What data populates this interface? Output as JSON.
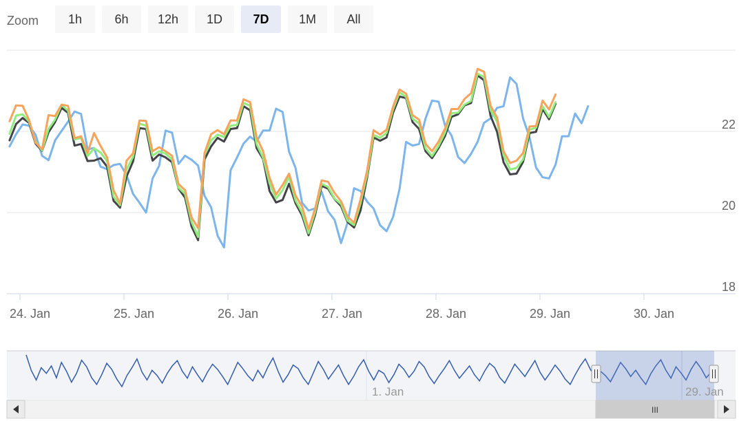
{
  "zoom": {
    "label": "Zoom",
    "buttons": [
      {
        "label": "1h",
        "selected": false
      },
      {
        "label": "6h",
        "selected": false
      },
      {
        "label": "12h",
        "selected": false
      },
      {
        "label": "1D",
        "selected": false
      },
      {
        "label": "7D",
        "selected": true
      },
      {
        "label": "1M",
        "selected": false
      },
      {
        "label": "All",
        "selected": false
      }
    ]
  },
  "chart_data": {
    "type": "line",
    "title": "",
    "xlabel": "",
    "ylabel": "",
    "x_tick_labels": [
      "24. Jan",
      "25. Jan",
      "26. Jan",
      "27. Jan",
      "28. Jan",
      "29. Jan",
      "30. Jan"
    ],
    "y_tick_labels": [
      "18",
      "20",
      "22"
    ],
    "ylim": [
      18,
      24
    ],
    "grid": true,
    "legend": "none",
    "x_start_days": 23.9,
    "x_step_days": 0.0625,
    "series_colors": {
      "blue": "#7cb5ec",
      "black": "#434348",
      "green": "#90ed7d",
      "orange": "#f7a35c"
    },
    "blue": [
      21.63,
      21.93,
      22.17,
      22.14,
      21.92,
      21.4,
      21.29,
      21.78,
      22.01,
      22.24,
      22.49,
      22.43,
      21.56,
      21.59,
      21.13,
      21.07,
      21.17,
      21.2,
      20.92,
      20.46,
      20.24,
      20.0,
      20.84,
      21.15,
      22.02,
      21.97,
      21.2,
      21.4,
      21.3,
      21.16,
      20.41,
      20.13,
      19.43,
      19.14,
      21.04,
      21.36,
      21.7,
      21.87,
      21.75,
      22.02,
      22.02,
      22.56,
      22.48,
      21.5,
      21.1,
      20.24,
      20.05,
      20.1,
      20.52,
      20.03,
      19.82,
      19.25,
      19.75,
      20.6,
      20.53,
      20.27,
      20.1,
      19.69,
      19.54,
      19.89,
      20.58,
      21.74,
      21.65,
      21.69,
      22.32,
      22.76,
      22.73,
      22.14,
      21.9,
      21.37,
      21.22,
      21.45,
      21.74,
      22.21,
      22.32,
      22.58,
      22.62,
      23.33,
      23.17,
      22.32,
      21.85,
      21.11,
      20.87,
      20.84,
      21.18,
      21.88,
      21.88,
      22.44,
      22.2,
      22.62
    ],
    "black": [
      21.78,
      22.18,
      22.33,
      22.21,
      21.7,
      21.52,
      21.98,
      22.23,
      22.58,
      22.46,
      21.65,
      21.69,
      21.27,
      21.28,
      21.34,
      21.13,
      20.29,
      20.12,
      20.89,
      21.26,
      22.08,
      22.06,
      21.28,
      21.43,
      21.36,
      21.24,
      20.59,
      20.37,
      19.66,
      19.32,
      21.31,
      21.63,
      21.84,
      21.75,
      22.06,
      22.08,
      22.62,
      22.52,
      21.59,
      21.32,
      20.53,
      20.25,
      20.31,
      20.71,
      20.23,
      19.93,
      19.44,
      19.94,
      20.66,
      20.59,
      20.33,
      20.16,
      19.77,
      19.63,
      20.05,
      20.86,
      21.85,
      21.77,
      21.85,
      22.46,
      22.86,
      22.82,
      22.23,
      22.06,
      21.51,
      21.34,
      21.59,
      21.89,
      22.36,
      22.42,
      22.64,
      22.7,
      23.38,
      23.26,
      22.38,
      21.99,
      21.24,
      20.94,
      20.96,
      21.25,
      21.96,
      21.99,
      22.55,
      22.3,
      22.68
    ],
    "green": [
      21.94,
      22.39,
      22.42,
      22.24,
      21.75,
      21.53,
      22.06,
      22.29,
      22.65,
      22.51,
      21.8,
      21.84,
      21.39,
      21.58,
      21.48,
      21.27,
      20.39,
      20.18,
      21.07,
      21.37,
      22.19,
      22.14,
      21.4,
      21.51,
      21.45,
      21.31,
      20.61,
      20.46,
      19.77,
      19.4,
      21.42,
      21.78,
      21.92,
      21.86,
      22.14,
      22.16,
      22.7,
      22.63,
      21.69,
      21.35,
      20.72,
      20.34,
      20.55,
      20.88,
      20.3,
      20.0,
      19.49,
      20.01,
      20.71,
      20.63,
      20.34,
      20.21,
      19.8,
      19.69,
      20.23,
      20.93,
      21.91,
      21.84,
      21.96,
      22.54,
      22.96,
      22.85,
      22.31,
      22.2,
      21.58,
      21.39,
      21.64,
      21.97,
      22.45,
      22.46,
      22.66,
      22.75,
      23.42,
      23.34,
      22.52,
      22.24,
      21.41,
      21.06,
      21.1,
      21.31,
      22.04,
      22.09,
      22.62,
      22.35,
      22.72
    ],
    "orange": [
      22.25,
      22.64,
      22.63,
      22.28,
      21.72,
      21.56,
      22.4,
      22.38,
      22.66,
      22.63,
      21.83,
      21.88,
      21.47,
      21.96,
      21.64,
      21.36,
      20.55,
      20.22,
      21.28,
      21.46,
      22.27,
      22.26,
      21.51,
      21.61,
      21.51,
      21.4,
      20.7,
      20.55,
      19.88,
      19.62,
      21.47,
      21.93,
      22.03,
      21.93,
      22.27,
      22.27,
      22.79,
      22.72,
      21.86,
      21.51,
      20.86,
      20.44,
      20.68,
      20.96,
      20.42,
      20.15,
      19.59,
      20.09,
      20.79,
      20.76,
      20.48,
      20.28,
      19.9,
      19.75,
      20.33,
      21.03,
      22.03,
      21.92,
      22.04,
      22.61,
      23.03,
      22.93,
      22.4,
      22.29,
      21.69,
      21.51,
      21.75,
      22.07,
      22.55,
      22.55,
      22.8,
      22.94,
      23.54,
      23.47,
      22.63,
      22.34,
      21.51,
      21.22,
      21.28,
      21.47,
      22.12,
      22.13,
      22.76,
      22.54,
      22.91
    ],
    "navigator": {
      "x_tick_labels": [
        "1. Jan",
        "29. Jan"
      ],
      "scrollbar_grip": "III",
      "values": [
        0.97,
        0.62,
        0.4,
        0.68,
        0.55,
        0.72,
        0.45,
        0.8,
        0.6,
        0.35,
        0.55,
        0.85,
        0.7,
        0.45,
        0.3,
        0.52,
        0.78,
        0.64,
        0.42,
        0.25,
        0.5,
        0.68,
        0.88,
        0.58,
        0.4,
        0.62,
        0.5,
        0.33,
        0.55,
        0.72,
        0.84,
        0.6,
        0.44,
        0.7,
        0.52,
        0.36,
        0.58,
        0.76,
        0.64,
        0.48,
        0.3,
        0.55,
        0.8,
        0.66,
        0.5,
        0.38,
        0.62,
        0.45,
        0.7,
        0.9,
        0.6,
        0.35,
        0.52,
        0.74,
        0.66,
        0.45,
        0.3,
        0.56,
        0.82,
        0.64,
        0.42,
        0.58,
        0.74,
        0.5,
        0.3,
        0.48,
        0.7,
        0.86,
        0.6,
        0.4,
        0.62,
        0.55,
        0.34,
        0.52,
        0.76,
        0.64,
        0.46,
        0.6,
        0.82,
        0.7,
        0.48,
        0.32,
        0.5,
        0.66,
        0.84,
        0.62,
        0.44,
        0.58,
        0.72,
        0.52,
        0.38,
        0.6,
        0.78,
        0.68,
        0.46,
        0.33,
        0.54,
        0.76,
        0.62,
        0.48,
        0.66,
        0.84,
        0.58,
        0.4,
        0.56,
        0.74,
        0.6,
        0.42,
        0.3,
        0.52,
        0.72,
        0.88,
        0.64,
        0.46,
        0.6,
        0.5,
        0.36,
        0.58,
        0.8,
        0.66,
        0.48,
        0.62,
        0.45,
        0.3,
        0.54,
        0.72,
        0.86,
        0.62,
        0.44,
        0.7,
        0.56,
        0.4,
        0.64,
        0.82,
        0.66,
        0.45,
        0.58,
        0.74
      ]
    }
  }
}
